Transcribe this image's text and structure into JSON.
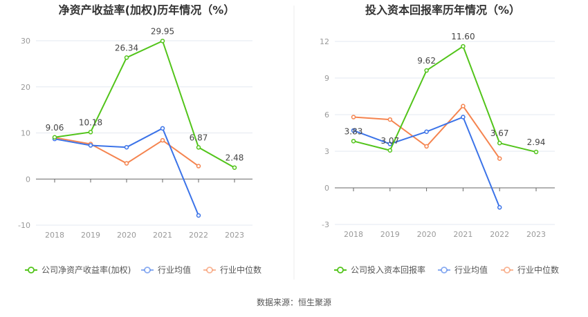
{
  "source": "数据来源：恒生聚源",
  "colors": {
    "company": "#52c41a",
    "avg": "#3b73e8",
    "median": "#f5844f"
  },
  "chart_data": [
    {
      "type": "line",
      "title": "净资产收益率(加权)历年情况（%）",
      "categories": [
        "2018",
        "2019",
        "2020",
        "2021",
        "2022",
        "2023"
      ],
      "ylim": [
        -10,
        30
      ],
      "yticks": [
        -10,
        0,
        10,
        20,
        30
      ],
      "grid": true,
      "legend_position": "bottom",
      "series": [
        {
          "name": "公司净资产收益率(加权)",
          "key": "company",
          "values": [
            9.06,
            10.18,
            26.34,
            29.95,
            6.87,
            2.48
          ],
          "labels": [
            "9.06",
            "10.18",
            "26.34",
            "29.95",
            "6.87",
            "2.48"
          ]
        },
        {
          "name": "行业均值",
          "key": "avg",
          "values": [
            8.7,
            7.3,
            6.9,
            11.0,
            -7.9,
            null
          ]
        },
        {
          "name": "行业中位数",
          "key": "median",
          "values": [
            9.0,
            7.6,
            3.4,
            8.4,
            2.8,
            null
          ]
        }
      ]
    },
    {
      "type": "line",
      "title": "投入资本回报率历年情况（%）",
      "categories": [
        "2018",
        "2019",
        "2020",
        "2021",
        "2022",
        "2023"
      ],
      "ylim": [
        -3,
        12
      ],
      "yticks": [
        -3,
        0,
        3,
        6,
        9,
        12
      ],
      "grid": true,
      "legend_position": "bottom",
      "series": [
        {
          "name": "公司投入资本回报率",
          "key": "company",
          "values": [
            3.83,
            3.07,
            9.62,
            11.6,
            3.67,
            2.94
          ],
          "labels": [
            "3.83",
            "3.07",
            "9.62",
            "11.60",
            "3.67",
            "2.94"
          ]
        },
        {
          "name": "行业均值",
          "key": "avg",
          "values": [
            4.7,
            3.6,
            4.6,
            5.8,
            -1.6,
            null
          ]
        },
        {
          "name": "行业中位数",
          "key": "median",
          "values": [
            5.8,
            5.6,
            3.4,
            6.7,
            2.4,
            null
          ]
        }
      ]
    }
  ]
}
